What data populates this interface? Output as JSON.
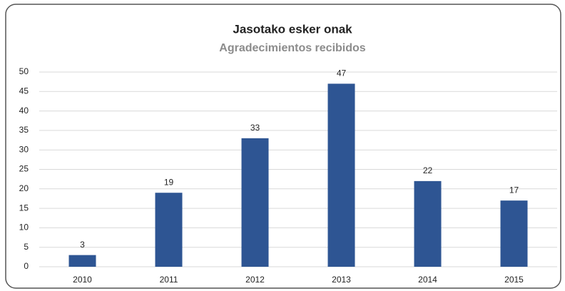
{
  "chart_data": {
    "type": "bar",
    "title": "Jasotako esker onak",
    "subtitle": "Agradecimientos recibidos",
    "categories": [
      "2010",
      "2011",
      "2012",
      "2013",
      "2014",
      "2015"
    ],
    "values": [
      3,
      19,
      33,
      47,
      22,
      17
    ],
    "color": "#2e5593",
    "ylim": [
      0,
      50
    ],
    "yticks": [
      0,
      5,
      10,
      15,
      20,
      25,
      30,
      35,
      40,
      45,
      50
    ],
    "grid": true
  }
}
